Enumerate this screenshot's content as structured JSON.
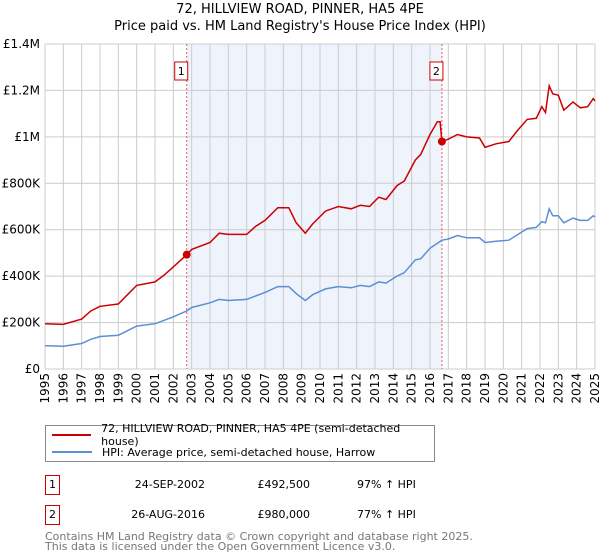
{
  "chart_data": {
    "type": "line",
    "title": "72, HILLVIEW ROAD, PINNER, HA5 4PE",
    "subtitle": "Price paid vs. HM Land Registry's House Price Index (HPI)",
    "xlim": [
      1995,
      2025
    ],
    "ylim": [
      0,
      1400000
    ],
    "x_ticks": [
      "1995",
      "1996",
      "1997",
      "1998",
      "1999",
      "2000",
      "2001",
      "2002",
      "2003",
      "2004",
      "2005",
      "2006",
      "2007",
      "2008",
      "2009",
      "2010",
      "2011",
      "2012",
      "2013",
      "2014",
      "2015",
      "2016",
      "2017",
      "2018",
      "2019",
      "2020",
      "2021",
      "2022",
      "2023",
      "2024",
      "2025"
    ],
    "y_ticks": [
      {
        "v": 0,
        "label": "£0"
      },
      {
        "v": 200000,
        "label": "£200K"
      },
      {
        "v": 400000,
        "label": "£400K"
      },
      {
        "v": 600000,
        "label": "£600K"
      },
      {
        "v": 800000,
        "label": "£800K"
      },
      {
        "v": 1000000,
        "label": "£1M"
      },
      {
        "v": 1200000,
        "label": "£1.2M"
      },
      {
        "v": 1400000,
        "label": "£1.4M"
      }
    ],
    "grid": true,
    "series": [
      {
        "name": "72, HILLVIEW ROAD, PINNER, HA5 4PE (semi-detached house)",
        "color": "#cc0000",
        "x": [
          1995,
          1996,
          1997,
          1997.5,
          1998,
          1999,
          1999.5,
          2000,
          2001,
          2001.5,
          2002,
          2002.73,
          2003,
          2004,
          2004.5,
          2005,
          2006,
          2006.5,
          2007,
          2007.7,
          2008.3,
          2008.7,
          2009.2,
          2009.6,
          2010.3,
          2011,
          2011.7,
          2012.2,
          2012.7,
          2013.2,
          2013.6,
          2014.2,
          2014.6,
          2015.2,
          2015.5,
          2016,
          2016.4,
          2016.55,
          2016.65,
          2017,
          2017.5,
          2018,
          2018.7,
          2019,
          2019.6,
          2020.3,
          2020.8,
          2021.3,
          2021.8,
          2022.1,
          2022.3,
          2022.5,
          2022.7,
          2023,
          2023.3,
          2023.8,
          2024.2,
          2024.6,
          2024.9,
          2025
        ],
        "y": [
          195000,
          192000,
          215000,
          250000,
          270000,
          280000,
          320000,
          360000,
          375000,
          405000,
          440000,
          492500,
          515000,
          545000,
          585000,
          580000,
          580000,
          615000,
          640000,
          695000,
          695000,
          630000,
          585000,
          625000,
          680000,
          700000,
          690000,
          705000,
          700000,
          740000,
          730000,
          790000,
          810000,
          900000,
          925000,
          1010000,
          1065000,
          1065000,
          980000,
          990000,
          1010000,
          1000000,
          995000,
          955000,
          970000,
          980000,
          1030000,
          1075000,
          1080000,
          1130000,
          1105000,
          1220000,
          1185000,
          1180000,
          1115000,
          1150000,
          1125000,
          1130000,
          1165000,
          1155000
        ]
      },
      {
        "name": "HPI: Average price, semi-detached house, Harrow",
        "color": "#5b8fd4",
        "x": [
          1995,
          1996,
          1997,
          1997.5,
          1998,
          1999,
          1999.5,
          2000,
          2001,
          2001.5,
          2002,
          2002.73,
          2003,
          2004,
          2004.5,
          2005,
          2006,
          2006.5,
          2007,
          2007.7,
          2008.3,
          2008.7,
          2009.2,
          2009.6,
          2010.3,
          2011,
          2011.7,
          2012.2,
          2012.7,
          2013.2,
          2013.6,
          2014.2,
          2014.6,
          2015.2,
          2015.5,
          2016,
          2016.65,
          2017,
          2017.5,
          2018,
          2018.7,
          2019,
          2019.6,
          2020.3,
          2020.8,
          2021.3,
          2021.8,
          2022.1,
          2022.3,
          2022.5,
          2022.7,
          2023,
          2023.3,
          2023.8,
          2024.2,
          2024.6,
          2024.9,
          2025
        ],
        "y": [
          100000,
          98000,
          110000,
          128000,
          140000,
          145000,
          165000,
          185000,
          195000,
          210000,
          225000,
          250000,
          265000,
          285000,
          300000,
          295000,
          300000,
          315000,
          330000,
          355000,
          355000,
          325000,
          295000,
          320000,
          345000,
          355000,
          350000,
          360000,
          355000,
          375000,
          370000,
          400000,
          415000,
          470000,
          475000,
          520000,
          555000,
          560000,
          575000,
          565000,
          565000,
          545000,
          550000,
          555000,
          580000,
          605000,
          610000,
          635000,
          630000,
          690000,
          660000,
          660000,
          630000,
          650000,
          640000,
          640000,
          660000,
          655000
        ]
      }
    ],
    "annotations": [
      {
        "label": "1",
        "x": 2002.73,
        "y": 492500
      },
      {
        "label": "2",
        "x": 2016.65,
        "y": 980000
      }
    ],
    "shaded_range": [
      2002.73,
      2016.65
    ]
  },
  "legend": {
    "property": "72, HILLVIEW ROAD, PINNER, HA5 4PE (semi-detached house)",
    "hpi": "HPI: Average price, semi-detached house, Harrow"
  },
  "sales": [
    {
      "num": "1",
      "date": "24-SEP-2002",
      "price": "£492,500",
      "hpi": "97% ↑ HPI"
    },
    {
      "num": "2",
      "date": "26-AUG-2016",
      "price": "£980,000",
      "hpi": "77% ↑ HPI"
    }
  ],
  "footer": {
    "line1": "Contains HM Land Registry data © Crown copyright and database right 2025.",
    "line2": "This data is licensed under the Open Government Licence v3.0."
  }
}
